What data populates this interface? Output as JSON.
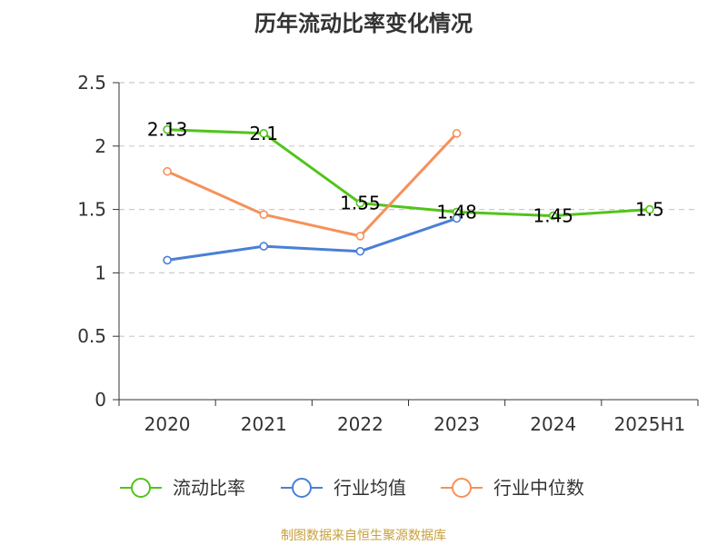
{
  "title": "历年流动比率变化情况",
  "source": "制图数据来自恒生聚源数据库",
  "chart_data": {
    "type": "line",
    "title": "历年流动比率变化情况",
    "xlabel": "",
    "ylabel": "",
    "categories": [
      "2020",
      "2021",
      "2022",
      "2023",
      "2024",
      "2025H1"
    ],
    "ylim": [
      0,
      2.5
    ],
    "yticks": [
      0,
      0.5,
      1,
      1.5,
      2,
      2.5
    ],
    "grid": true,
    "legend_position": "bottom",
    "series": [
      {
        "name": "流动比率",
        "color": "#52c41a",
        "values": [
          2.13,
          2.1,
          1.55,
          1.48,
          1.45,
          1.5
        ],
        "labels": [
          "2.13",
          "2.1",
          "1.55",
          "1.48",
          "1.45",
          "1.5"
        ],
        "show_labels": true
      },
      {
        "name": "行业均值",
        "color": "#4a7fd6",
        "values": [
          1.1,
          1.21,
          1.17,
          1.43,
          null,
          null
        ],
        "show_labels": false
      },
      {
        "name": "行业中位数",
        "color": "#f5915a",
        "values": [
          1.8,
          1.46,
          1.29,
          2.1,
          null,
          null
        ],
        "show_labels": false
      }
    ]
  }
}
